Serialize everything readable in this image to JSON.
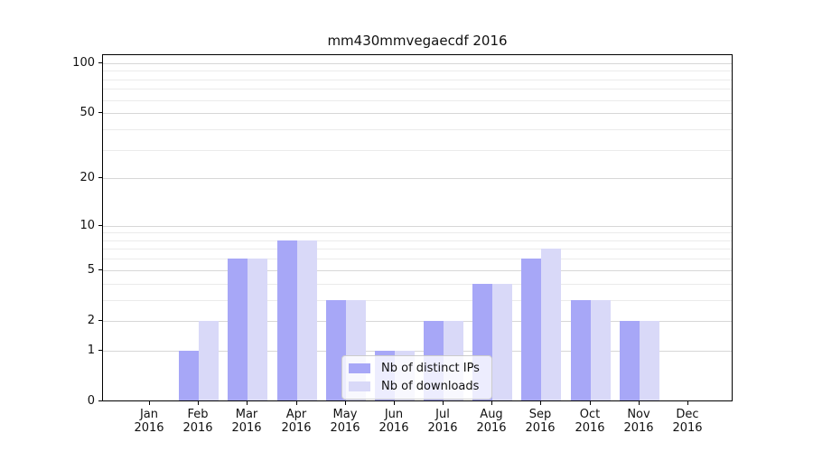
{
  "chart_data": {
    "type": "bar",
    "title": "mm430mmvegaecdf 2016",
    "categories": [
      "Jan 2016",
      "Feb 2016",
      "Mar 2016",
      "Apr 2016",
      "May 2016",
      "Jun 2016",
      "Jul 2016",
      "Aug 2016",
      "Sep 2016",
      "Oct 2016",
      "Nov 2016",
      "Dec 2016"
    ],
    "series": [
      {
        "name": "Nb of distinct IPs",
        "color": "#a7a7f7",
        "values": [
          0,
          1,
          6,
          8,
          3,
          1,
          2,
          4,
          6,
          3,
          2,
          0
        ]
      },
      {
        "name": "Nb of downloads",
        "color": "#d9d9f8",
        "values": [
          0,
          2,
          6,
          8,
          3,
          1,
          2,
          4,
          7,
          3,
          2,
          0
        ]
      }
    ],
    "xlabel": "",
    "ylabel": "",
    "yscale": "log1p",
    "ylim": [
      0,
      113
    ],
    "y_major_ticks": [
      0,
      1,
      2,
      5,
      10,
      20,
      50,
      100
    ],
    "y_minor_ticks": [
      3,
      4,
      6,
      7,
      8,
      9,
      30,
      40,
      60,
      70,
      80,
      90
    ],
    "grid": true,
    "legend_position": "lower center inside"
  },
  "colors": {
    "grid_major": "#d7d7d7",
    "grid_minor": "#ebebeb",
    "spine": "#000000",
    "text": "#111111"
  }
}
